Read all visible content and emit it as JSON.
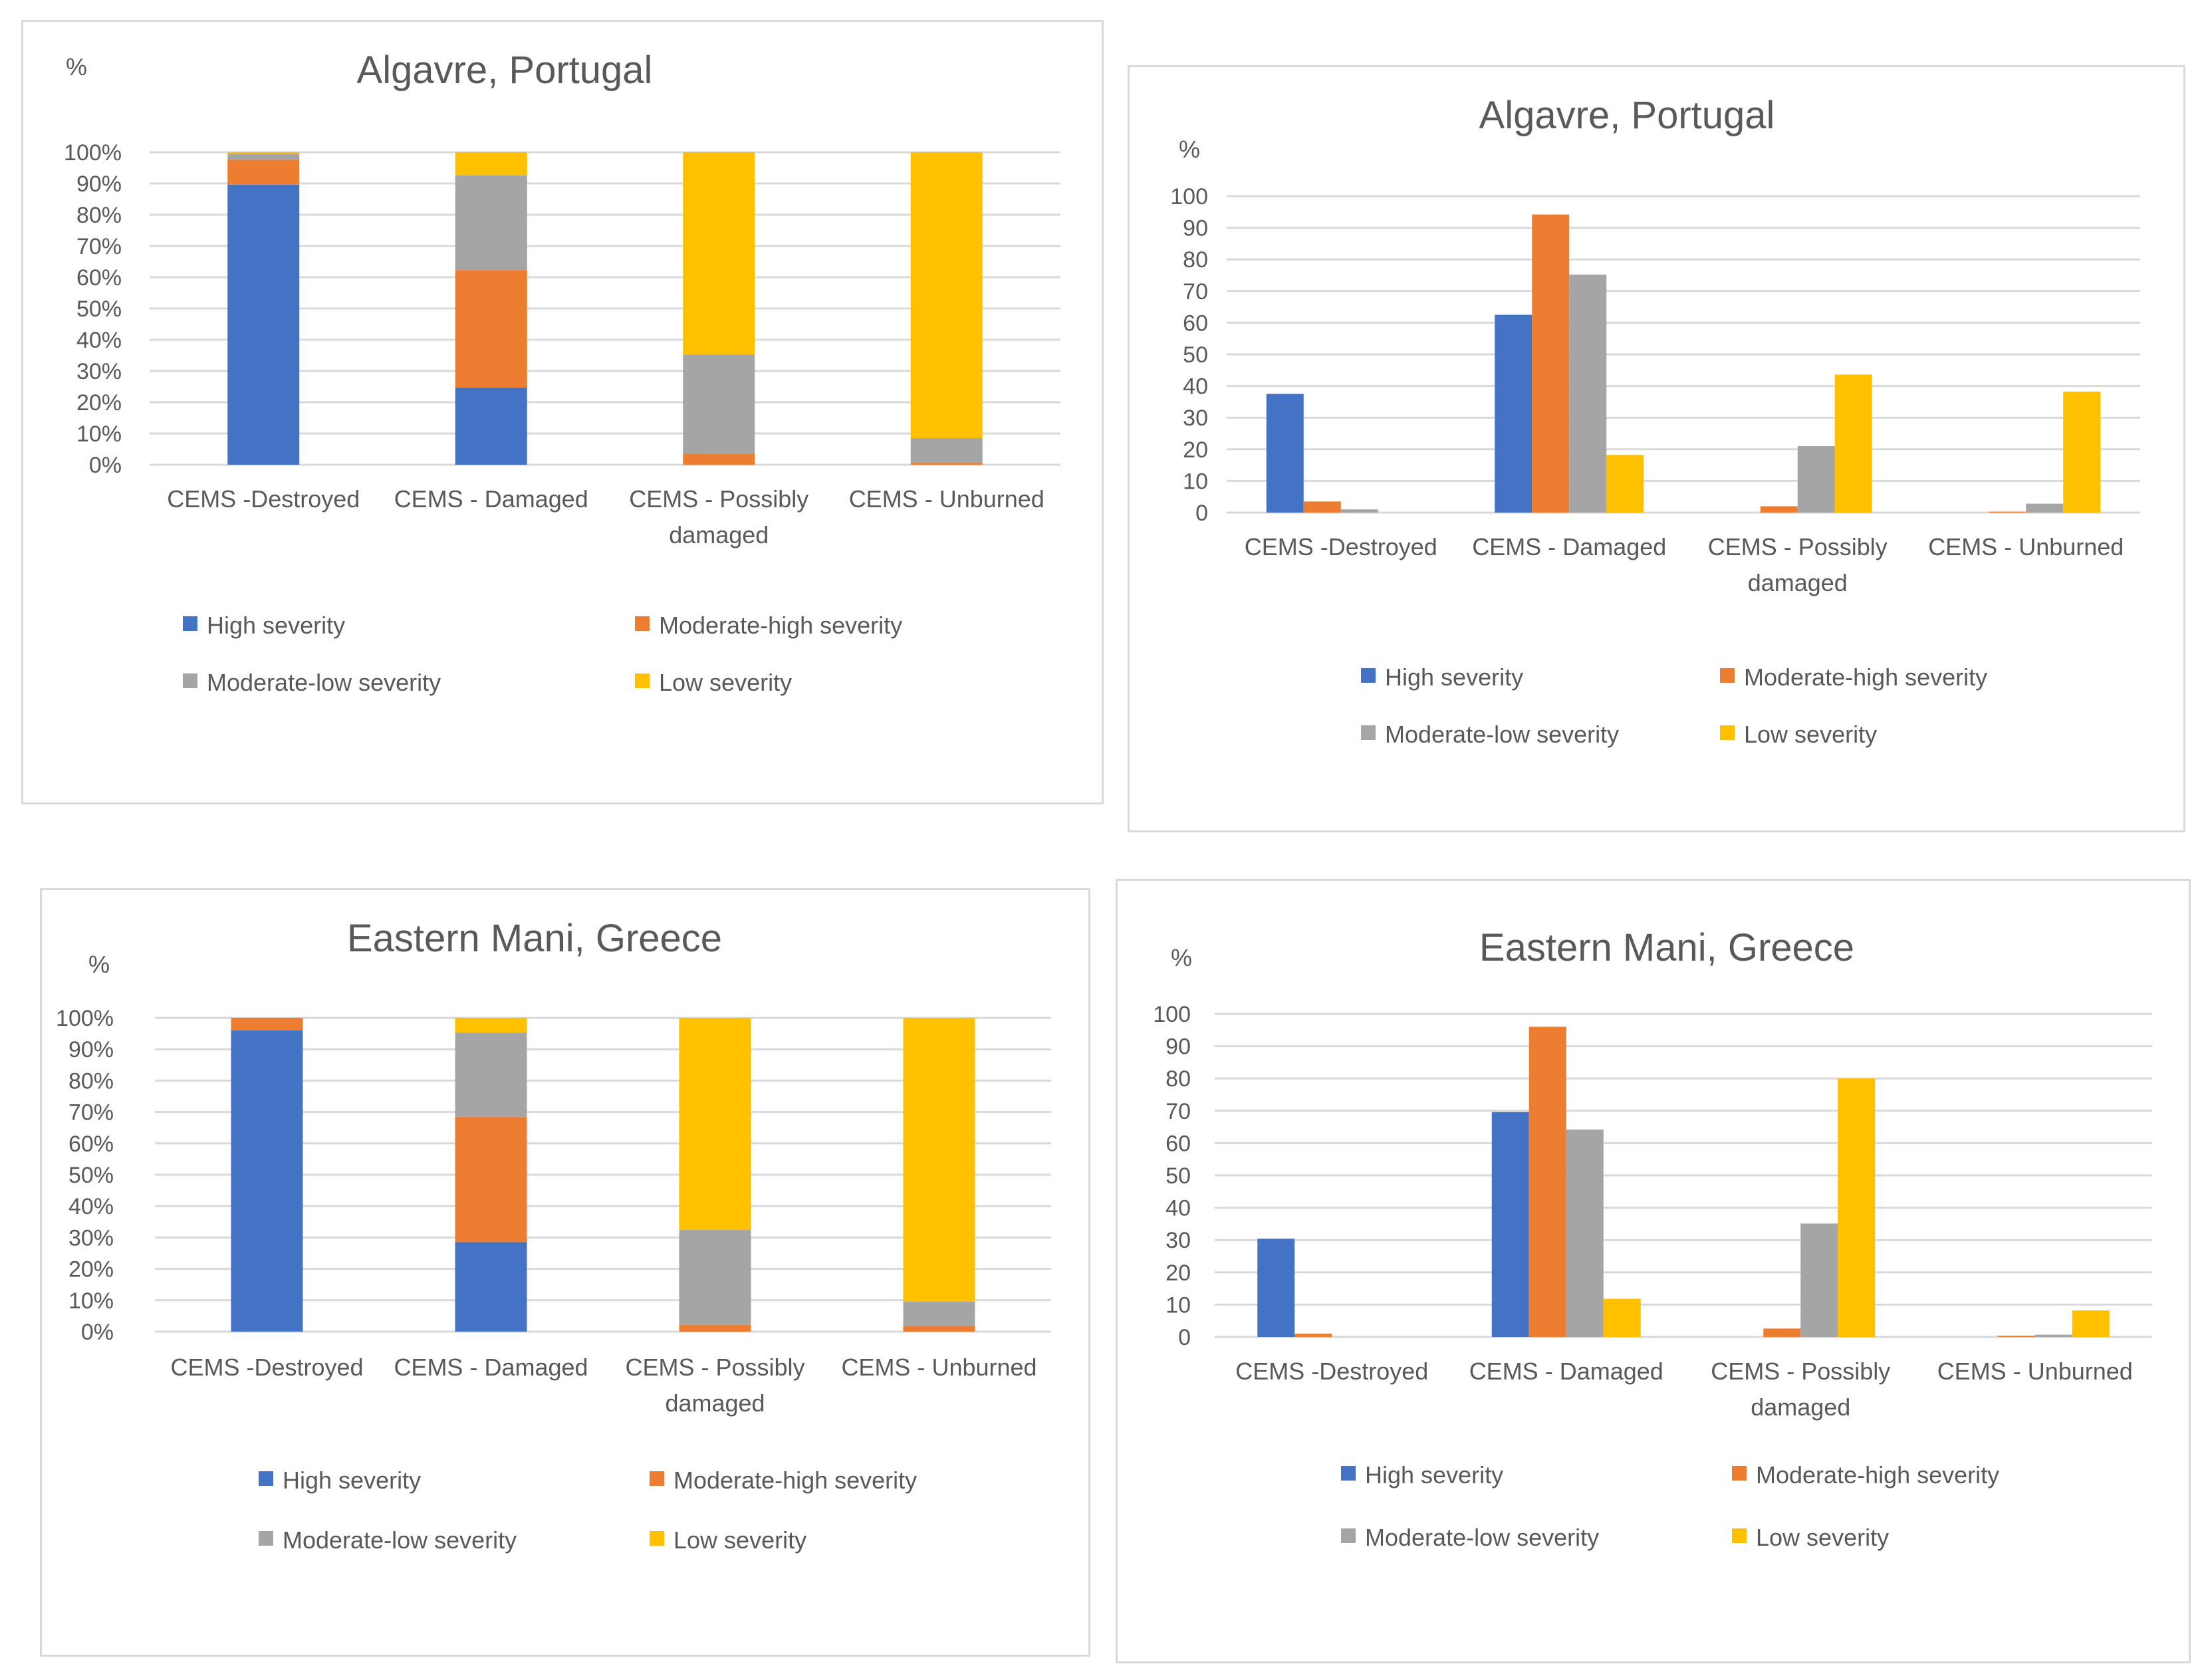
{
  "legend_labels": [
    "High severity",
    "Moderate-high severity",
    "Moderate-low severity",
    "Low severity"
  ],
  "colors": [
    "#4472C4",
    "#ED7D31",
    "#A5A5A5",
    "#FFC000"
  ],
  "chart_data": [
    {
      "type": "bar",
      "stacking": "percent",
      "title": "Algavre, Portugal",
      "ylabel": "%",
      "categories": [
        "CEMS -Destroyed",
        "CEMS - Damaged",
        "CEMS - Possibly damaged",
        "CEMS - Unburned"
      ],
      "ylim": [
        0,
        100
      ],
      "yticks": [
        "0%",
        "10%",
        "20%",
        "30%",
        "40%",
        "50%",
        "60%",
        "70%",
        "80%",
        "90%",
        "100%"
      ],
      "legend_position": "bottom",
      "series": [
        {
          "name": "High severity",
          "values": [
            89.6,
            24.7,
            0,
            0
          ]
        },
        {
          "name": "Moderate-high severity",
          "values": [
            8,
            37.6,
            3.5,
            0.6
          ]
        },
        {
          "name": "Moderate-low severity",
          "values": [
            1.9,
            30.3,
            31.7,
            7.9
          ]
        },
        {
          "name": "Low severity",
          "values": [
            0.5,
            7.4,
            64.8,
            91.5
          ]
        }
      ]
    },
    {
      "type": "bar",
      "title": "Algavre, Portugal",
      "ylabel": "%",
      "categories": [
        "CEMS -Destroyed",
        "CEMS - Damaged",
        "CEMS - Possibly damaged",
        "CEMS - Unburned"
      ],
      "ylim": [
        0,
        100
      ],
      "yticks": [
        "0",
        "10",
        "20",
        "30",
        "40",
        "50",
        "60",
        "70",
        "80",
        "90",
        "100"
      ],
      "legend_position": "bottom",
      "series": [
        {
          "name": "High severity",
          "values": [
            37.5,
            62.5,
            0,
            0
          ]
        },
        {
          "name": "Moderate-high severity",
          "values": [
            3.5,
            94.2,
            2,
            0.3
          ]
        },
        {
          "name": "Moderate-low severity",
          "values": [
            1,
            75.2,
            21,
            2.8
          ]
        },
        {
          "name": "Low severity",
          "values": [
            0,
            18.2,
            43.6,
            38.2
          ]
        }
      ]
    },
    {
      "type": "bar",
      "stacking": "percent",
      "title": "Eastern Mani, Greece",
      "ylabel": "%",
      "categories": [
        "CEMS -Destroyed",
        "CEMS - Damaged",
        "CEMS - Possibly damaged",
        "CEMS - Unburned"
      ],
      "ylim": [
        0,
        100
      ],
      "yticks": [
        "0%",
        "10%",
        "20%",
        "30%",
        "40%",
        "50%",
        "60%",
        "70%",
        "80%",
        "90%",
        "100%"
      ],
      "legend_position": "bottom",
      "series": [
        {
          "name": "High severity",
          "values": [
            96,
            28.5,
            0,
            0
          ]
        },
        {
          "name": "Moderate-high severity",
          "values": [
            4,
            39.9,
            2.2,
            1.8
          ]
        },
        {
          "name": "Moderate-low severity",
          "values": [
            0,
            26.9,
            30.2,
            7.8
          ]
        },
        {
          "name": "Low severity",
          "values": [
            0,
            4.7,
            67.6,
            90.4
          ]
        }
      ]
    },
    {
      "type": "bar",
      "title": "Eastern Mani, Greece",
      "ylabel": "%",
      "categories": [
        "CEMS -Destroyed",
        "CEMS - Damaged",
        "CEMS - Possibly damaged",
        "CEMS - Unburned"
      ],
      "ylim": [
        0,
        100
      ],
      "yticks": [
        "0",
        "10",
        "20",
        "30",
        "40",
        "50",
        "60",
        "70",
        "80",
        "90",
        "100"
      ],
      "legend_position": "bottom",
      "series": [
        {
          "name": "High severity",
          "values": [
            30.4,
            69.6,
            0,
            0
          ]
        },
        {
          "name": "Moderate-high severity",
          "values": [
            1,
            96,
            2.6,
            0.4
          ]
        },
        {
          "name": "Moderate-low severity",
          "values": [
            0,
            64.2,
            35.1,
            0.7
          ]
        },
        {
          "name": "Low severity",
          "values": [
            0,
            11.8,
            80,
            8.2
          ]
        }
      ]
    }
  ]
}
